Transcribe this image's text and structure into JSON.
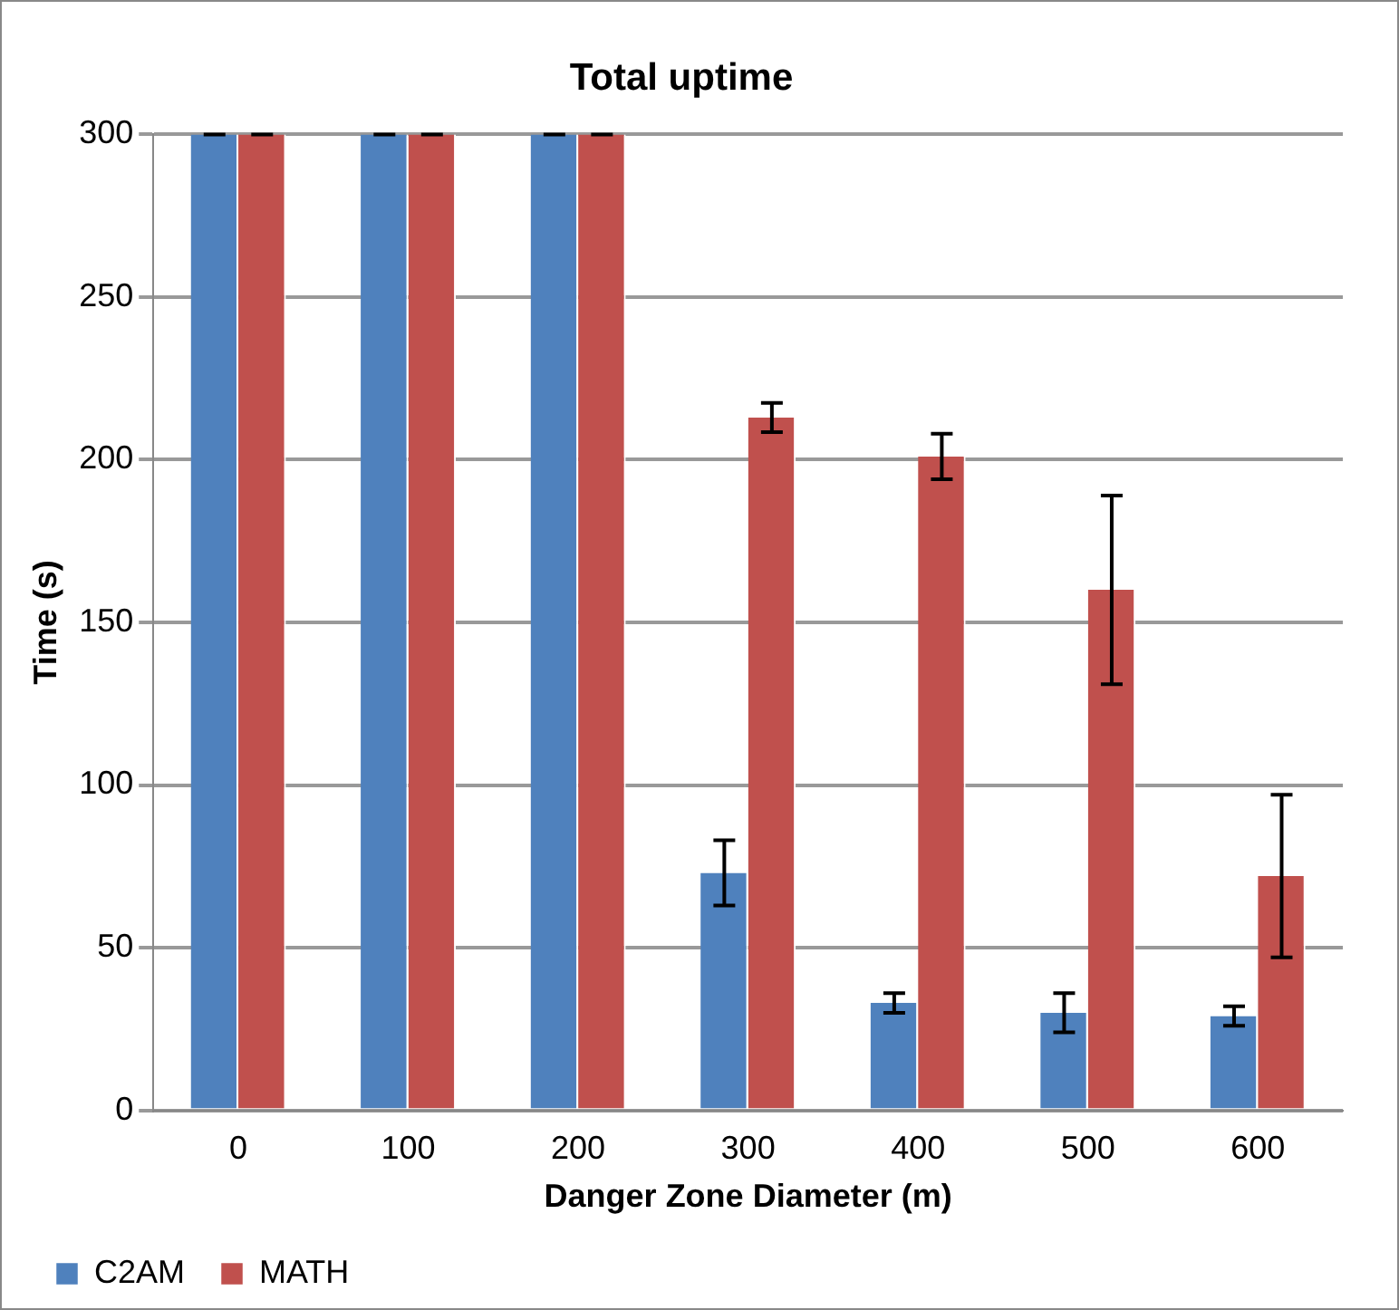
{
  "chart_data": {
    "type": "bar",
    "title": "Total uptime",
    "xlabel": "Danger Zone Diameter (m)",
    "ylabel": "Time (s)",
    "categories": [
      "0",
      "100",
      "200",
      "300",
      "400",
      "500",
      "600"
    ],
    "series": [
      {
        "name": "C2AM",
        "color": "#4f81bd",
        "values": [
          300,
          300,
          300,
          73,
          33,
          30,
          29
        ],
        "errors": [
          0,
          0,
          0,
          10,
          3,
          6,
          3
        ]
      },
      {
        "name": "MATH",
        "color": "#c0504d",
        "values": [
          300,
          300,
          300,
          213,
          201,
          160,
          72
        ],
        "errors": [
          0,
          0,
          0,
          4.5,
          7,
          29,
          25
        ]
      }
    ],
    "ylim": [
      0,
      300
    ],
    "yticks": [
      0,
      50,
      100,
      150,
      200,
      250,
      300
    ],
    "grid": "y",
    "legend": "bottom"
  }
}
